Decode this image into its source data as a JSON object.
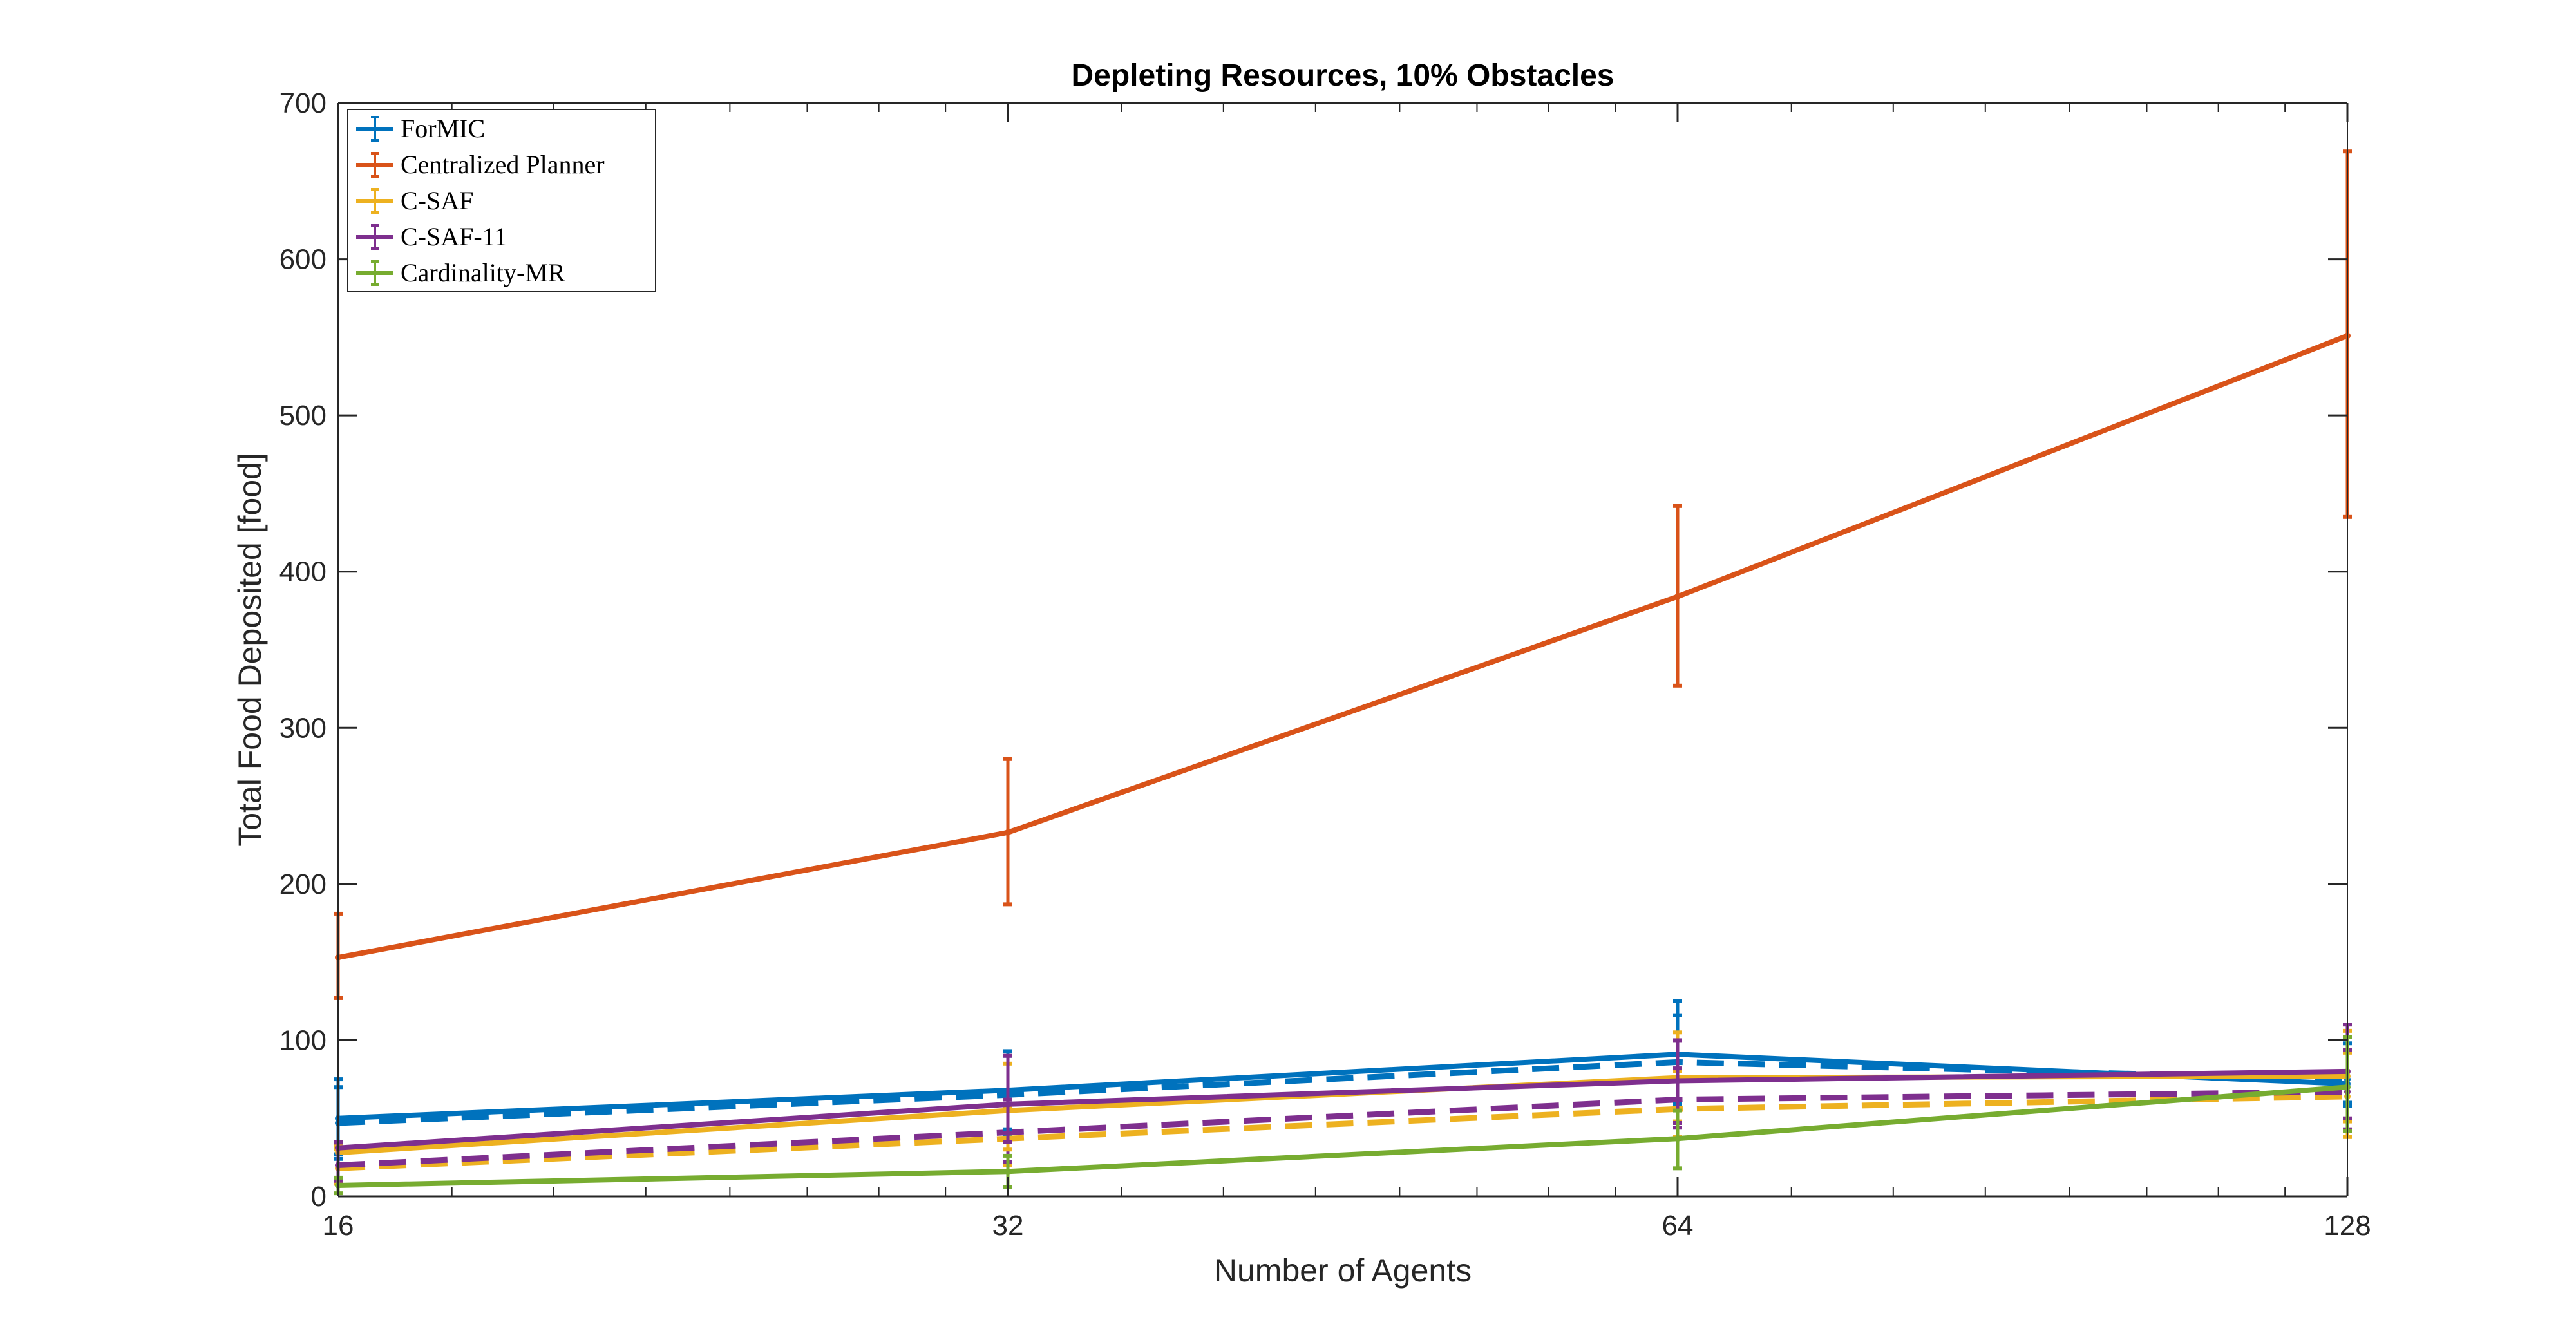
{
  "chart_data": {
    "type": "line",
    "title": "Depleting Resources, 10% Obstacles",
    "xlabel": "Number of Agents",
    "ylabel": "Total Food Deposited [food]",
    "x_scale": "log2",
    "xlim": [
      16,
      128
    ],
    "ylim": [
      0,
      700
    ],
    "x_ticks": [
      16,
      32,
      64,
      128
    ],
    "y_ticks": [
      0,
      100,
      200,
      300,
      400,
      500,
      600,
      700
    ],
    "x": [
      16,
      32,
      64,
      128
    ],
    "legend_position": "top-left",
    "series": [
      {
        "name": "ForMIC",
        "color": "#0072BD",
        "values": [
          50,
          68,
          91,
          72
        ],
        "err_low": [
          27,
          43,
          59,
          58
        ],
        "err_high": [
          75,
          93,
          125,
          102
        ],
        "dashed_values": [
          47,
          65,
          86,
          75
        ],
        "dashed_err_low": [
          24,
          40,
          57,
          60
        ],
        "dashed_err_high": [
          70,
          90,
          116,
          98
        ]
      },
      {
        "name": "Centralized Planner",
        "color": "#D95319",
        "values": [
          153,
          233,
          384,
          551
        ],
        "err_low": [
          127,
          187,
          327,
          435
        ],
        "err_high": [
          181,
          280,
          442,
          669
        ]
      },
      {
        "name": "C-SAF",
        "color": "#EDB120",
        "values": [
          28,
          55,
          76,
          77
        ],
        "err_low": [
          9,
          30,
          48,
          48
        ],
        "err_high": [
          32,
          85,
          105,
          106
        ],
        "dashed_values": [
          18,
          37,
          56,
          64
        ],
        "dashed_err_low": [
          8,
          20,
          38,
          38
        ],
        "dashed_err_high": [
          30,
          58,
          80,
          92
        ]
      },
      {
        "name": "C-SAF-11",
        "color": "#7E2F8E",
        "values": [
          31,
          59,
          74,
          80
        ],
        "err_low": [
          10,
          35,
          47,
          50
        ],
        "err_high": [
          35,
          90,
          100,
          110
        ],
        "dashed_values": [
          20,
          41,
          62,
          67
        ],
        "dashed_err_low": [
          10,
          22,
          44,
          43
        ],
        "dashed_err_high": [
          34,
          62,
          82,
          94
        ]
      },
      {
        "name": "Cardinality-MR",
        "color": "#77AC30",
        "values": [
          7,
          16,
          37,
          70
        ],
        "err_low": [
          2,
          6,
          18,
          42
        ],
        "err_high": [
          12,
          26,
          55,
          102
        ]
      }
    ]
  }
}
